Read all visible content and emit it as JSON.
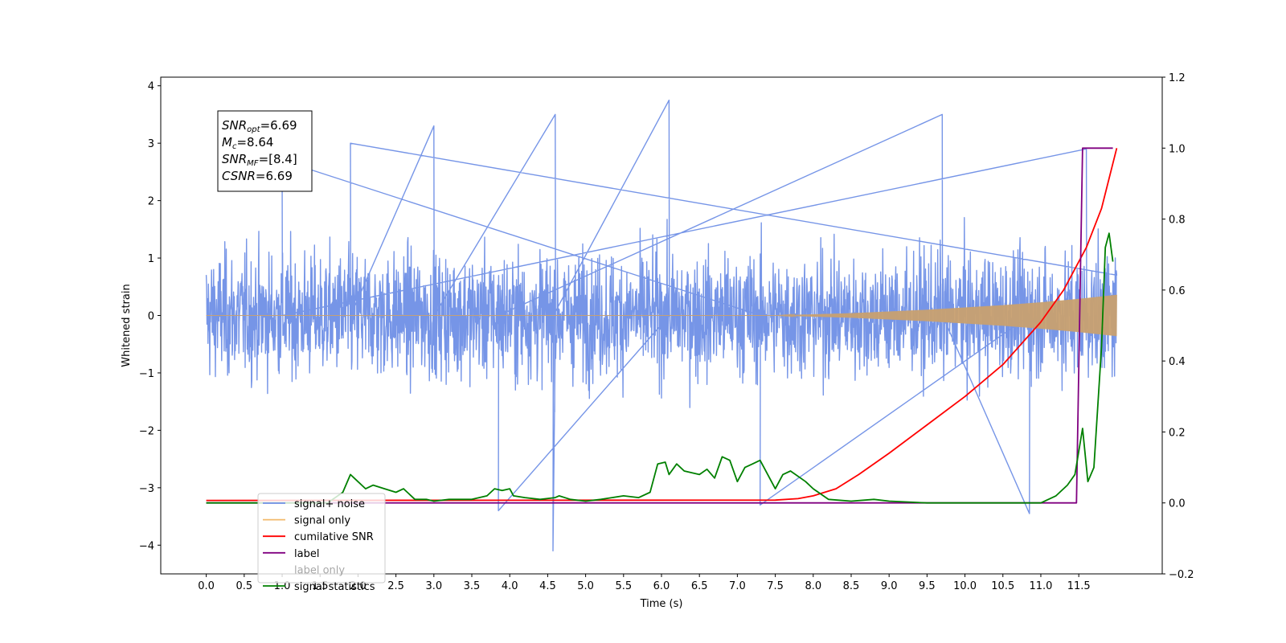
{
  "chart_data": {
    "type": "line",
    "xlabel": "Time (s)",
    "ylabel": "Whitened strain",
    "xlim": [
      -0.6,
      12.6
    ],
    "ylim": [
      -4.5,
      4.15
    ],
    "y2lim": [
      -0.2,
      1.2
    ],
    "x_ticks": [
      "0.0",
      "0.5",
      "1.0",
      "1.5",
      "2.0",
      "2.5",
      "3.0",
      "3.5",
      "4.0",
      "4.5",
      "5.0",
      "5.5",
      "6.0",
      "6.5",
      "7.0",
      "7.5",
      "8.0",
      "8.5",
      "9.0",
      "9.5",
      "10.0",
      "10.5",
      "11.0",
      "11.5"
    ],
    "y_ticks": [
      4,
      3,
      2,
      1,
      0,
      -1,
      -2,
      -3,
      -4
    ],
    "y_tick_labels": [
      "4",
      "3",
      "2",
      "1",
      "0",
      "−1",
      "−2",
      "−3",
      "−4"
    ],
    "y2_ticks": [
      1.2,
      1.0,
      0.8,
      0.6,
      0.4,
      0.2,
      0.0,
      -0.2
    ],
    "y2_tick_labels": [
      "1.2",
      "1.0",
      "0.8",
      "0.6",
      "0.4",
      "0.2",
      "0.0",
      "−0.2"
    ],
    "grid": false,
    "legend_position": "lower-left",
    "annotation": [
      {
        "name": "SNR",
        "sub": "opt",
        "value": "=6.69"
      },
      {
        "name": "M",
        "sub": "c",
        "value": "=8.64"
      },
      {
        "name": "SNR",
        "sub": "MF",
        "value": "=[8.4]"
      },
      {
        "name": "CSNR",
        "sub": "",
        "value": "=6.69"
      }
    ],
    "legend": [
      {
        "label": "signal+ noise",
        "color": "#6f8fe6"
      },
      {
        "label": "signal only",
        "color": "#f2b96b"
      },
      {
        "label": "cumilative SNR",
        "color": "#ff0000"
      },
      {
        "label": "label",
        "color": "#800080"
      },
      {
        "label": "label only",
        "color": "#999999"
      },
      {
        "label": "signal statistics",
        "color": "#008000"
      }
    ],
    "series": [
      {
        "name": "signal+ noise",
        "axis": "left",
        "color": "#6f8fe6",
        "extremes": [
          [
            1.9,
            3.0
          ],
          [
            3.0,
            3.3
          ],
          [
            4.6,
            3.5
          ],
          [
            4.57,
            -4.1
          ],
          [
            6.1,
            3.75
          ],
          [
            3.85,
            -3.4
          ],
          [
            9.7,
            3.5
          ],
          [
            10.85,
            -3.45
          ],
          [
            7.3,
            -3.3
          ],
          [
            1.0,
            2.7
          ],
          [
            11.6,
            2.9
          ]
        ]
      },
      {
        "name": "signal only",
        "axis": "left",
        "color": "#c8a070",
        "envelope": [
          [
            0.0,
            0.0
          ],
          [
            7.5,
            0.0
          ],
          [
            8.5,
            0.04
          ],
          [
            9.5,
            0.1
          ],
          [
            10.5,
            0.18
          ],
          [
            11.0,
            0.23
          ],
          [
            11.5,
            0.29
          ],
          [
            12.0,
            0.36
          ]
        ]
      },
      {
        "name": "cumilative SNR",
        "axis": "right",
        "color": "#ff0000",
        "x": [
          0.0,
          7.5,
          7.8,
          8.0,
          8.3,
          8.6,
          9.0,
          9.5,
          10.0,
          10.5,
          11.0,
          11.3,
          11.6,
          11.8,
          12.0
        ],
        "y": [
          0.007,
          0.008,
          0.012,
          0.02,
          0.04,
          0.08,
          0.14,
          0.22,
          0.3,
          0.39,
          0.51,
          0.6,
          0.72,
          0.83,
          1.0
        ]
      },
      {
        "name": "label",
        "axis": "right",
        "color": "#800080",
        "x": [
          0.0,
          11.47,
          11.55,
          11.95
        ],
        "y": [
          0.0,
          0.0,
          1.0,
          1.0
        ]
      },
      {
        "name": "signal statistics",
        "axis": "right",
        "color": "#008000",
        "x": [
          0.0,
          1.6,
          1.8,
          1.9,
          1.95,
          2.1,
          2.2,
          2.35,
          2.5,
          2.6,
          2.75,
          2.9,
          3.0,
          3.2,
          3.5,
          3.7,
          3.8,
          3.9,
          4.0,
          4.05,
          4.2,
          4.4,
          4.6,
          4.65,
          4.8,
          5.0,
          5.2,
          5.5,
          5.7,
          5.85,
          5.95,
          6.05,
          6.1,
          6.2,
          6.3,
          6.5,
          6.6,
          6.7,
          6.8,
          6.9,
          7.0,
          7.1,
          7.2,
          7.3,
          7.4,
          7.5,
          7.6,
          7.7,
          7.9,
          8.0,
          8.2,
          8.5,
          8.8,
          9.0,
          9.5,
          10.0,
          10.5,
          11.0,
          11.2,
          11.35,
          11.45,
          11.55,
          11.62,
          11.7,
          11.8,
          11.85,
          11.9,
          11.95
        ],
        "y": [
          0.0,
          0.0,
          0.03,
          0.08,
          0.07,
          0.04,
          0.05,
          0.04,
          0.03,
          0.04,
          0.01,
          0.01,
          0.005,
          0.01,
          0.01,
          0.02,
          0.04,
          0.035,
          0.04,
          0.02,
          0.015,
          0.01,
          0.015,
          0.02,
          0.01,
          0.005,
          0.01,
          0.02,
          0.015,
          0.03,
          0.11,
          0.115,
          0.08,
          0.11,
          0.09,
          0.08,
          0.095,
          0.07,
          0.13,
          0.12,
          0.06,
          0.1,
          0.11,
          0.12,
          0.08,
          0.04,
          0.08,
          0.09,
          0.06,
          0.04,
          0.01,
          0.005,
          0.01,
          0.005,
          0.0,
          0.0,
          0.0,
          0.0,
          0.02,
          0.05,
          0.08,
          0.21,
          0.06,
          0.1,
          0.44,
          0.72,
          0.76,
          0.68
        ]
      }
    ]
  }
}
